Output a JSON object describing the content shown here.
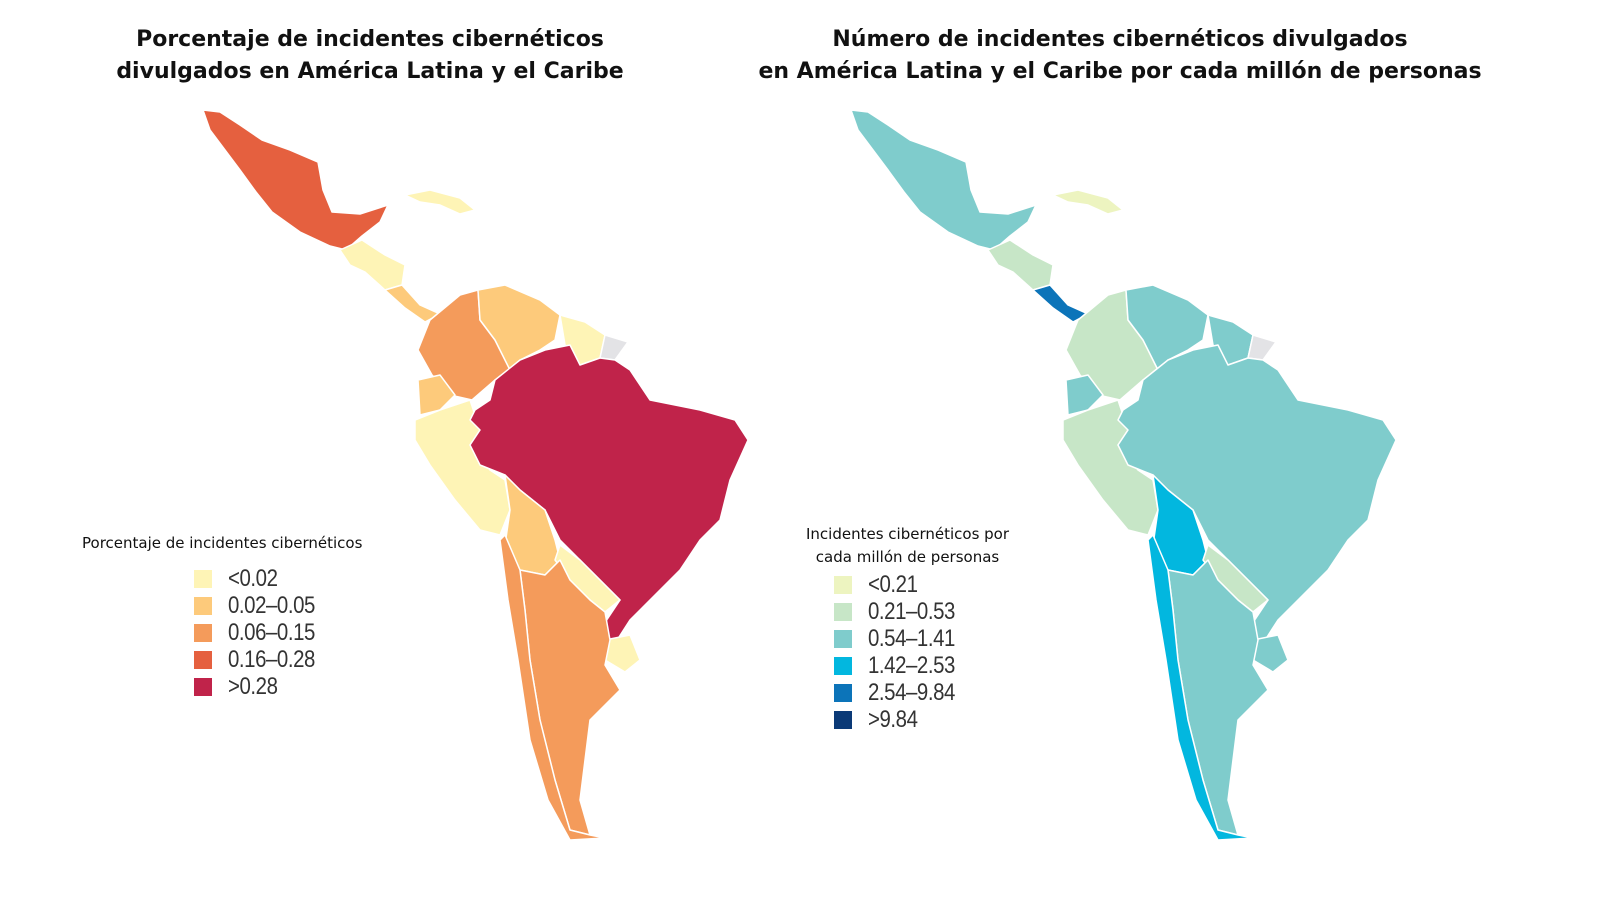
{
  "maps": [
    {
      "title": "Porcentaje de incidentes cibernéticos\ndivulgados en América Latina y el Caribe",
      "legend_title": "Porcentaje de incidentes cibernéticos",
      "classes": [
        {
          "label": "<0.02",
          "color": "#fef4b6"
        },
        {
          "label": "0.02–0.05",
          "color": "#fdca7b"
        },
        {
          "label": "0.06–0.15",
          "color": "#f49b5b"
        },
        {
          "label": "0.16–0.28",
          "color": "#e5603f"
        },
        {
          "label": ">0.28",
          "color": "#c0234a"
        }
      ],
      "no_data_color": "#e3e3e6",
      "regions": {
        "mexico": 3,
        "central_america": 0,
        "central_america_south": 1,
        "caribbean": 0,
        "colombia": 2,
        "venezuela": 1,
        "guyana_suriname": 0,
        "french_guiana": -1,
        "ecuador": 1,
        "peru": 0,
        "brazil": 4,
        "bolivia": 1,
        "paraguay": 0,
        "uruguay": 0,
        "argentina": 2,
        "chile": 2
      }
    },
    {
      "title": "Número de incidentes cibernéticos divulgados\nen América Latina y el Caribe por cada millón de personas",
      "legend_title": "Incidentes cibernéticos por\ncada millón de personas",
      "classes": [
        {
          "label": "<0.21",
          "color": "#edf4c0"
        },
        {
          "label": "0.21–0.53",
          "color": "#c7e6c7"
        },
        {
          "label": "0.54–1.41",
          "color": "#7fcccc"
        },
        {
          "label": "1.42–2.53",
          "color": "#02b7df"
        },
        {
          "label": "2.54–9.84",
          "color": "#0c74b9"
        },
        {
          "label": ">9.84",
          "color": "#0b3a77"
        }
      ],
      "no_data_color": "#e3e3e6",
      "regions": {
        "mexico": 2,
        "central_america": 1,
        "central_america_south": 4,
        "caribbean": 0,
        "colombia": 1,
        "venezuela": 2,
        "guyana_suriname": 2,
        "french_guiana": -1,
        "ecuador": 2,
        "peru": 1,
        "brazil": 2,
        "bolivia": 3,
        "paraguay": 1,
        "uruguay": 2,
        "argentina": 2,
        "chile": 3
      }
    }
  ]
}
